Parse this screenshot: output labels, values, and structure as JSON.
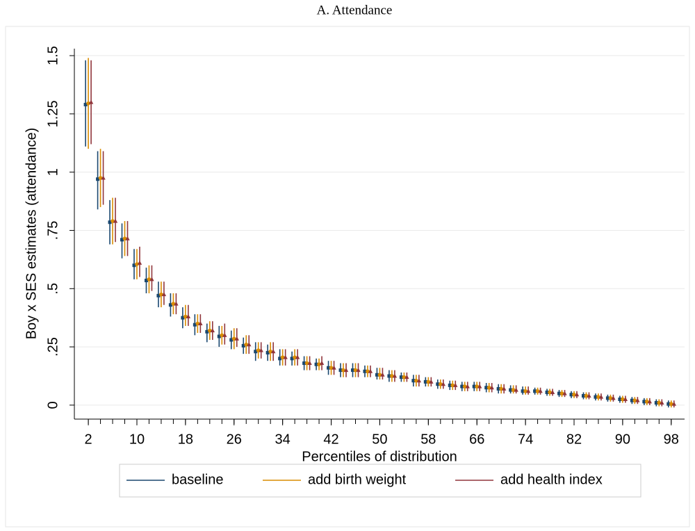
{
  "chart_data": {
    "type": "errorbar",
    "title": "A. Attendance",
    "x_label": "Percentiles of distribution",
    "y_label": "Boy x SES estimates (attendance)",
    "x": [
      2,
      4,
      6,
      8,
      10,
      12,
      14,
      16,
      18,
      20,
      22,
      24,
      26,
      28,
      30,
      32,
      34,
      36,
      38,
      40,
      42,
      44,
      46,
      48,
      50,
      52,
      54,
      56,
      58,
      60,
      62,
      64,
      66,
      68,
      70,
      72,
      74,
      76,
      78,
      80,
      82,
      84,
      86,
      88,
      90,
      92,
      94,
      96,
      98
    ],
    "xlim": [
      -0.3,
      100.2
    ],
    "xticks": [
      2,
      10,
      18,
      26,
      34,
      42,
      50,
      58,
      66,
      74,
      82,
      90,
      98
    ],
    "ylim": [
      -0.06,
      1.53
    ],
    "yticks": [
      0,
      {
        "value": 0.25,
        "label": ".25"
      },
      {
        "value": 0.5,
        "label": ".5"
      },
      {
        "value": 0.75,
        "label": ".75"
      },
      1,
      {
        "value": 1.25,
        "label": "1.25"
      },
      {
        "value": 1.5,
        "label": "1.5"
      }
    ],
    "grid": true,
    "legend": "bottom",
    "series": [
      {
        "name": "baseline",
        "color": "#1a476f",
        "marker": "square",
        "values": [
          1.29,
          0.97,
          0.785,
          0.71,
          0.6,
          0.535,
          0.47,
          0.43,
          0.375,
          0.345,
          0.315,
          0.295,
          0.28,
          0.255,
          0.23,
          0.225,
          0.2,
          0.2,
          0.18,
          0.175,
          0.16,
          0.15,
          0.15,
          0.145,
          0.13,
          0.125,
          0.12,
          0.105,
          0.1,
          0.09,
          0.085,
          0.08,
          0.08,
          0.075,
          0.07,
          0.065,
          0.06,
          0.06,
          0.055,
          0.05,
          0.045,
          0.04,
          0.035,
          0.03,
          0.025,
          0.02,
          0.015,
          0.01,
          0.005
        ],
        "lower": [
          1.11,
          0.84,
          0.69,
          0.63,
          0.54,
          0.48,
          0.42,
          0.38,
          0.33,
          0.3,
          0.27,
          0.25,
          0.24,
          0.22,
          0.19,
          0.19,
          0.17,
          0.17,
          0.15,
          0.15,
          0.13,
          0.12,
          0.12,
          0.12,
          0.11,
          0.1,
          0.1,
          0.08,
          0.08,
          0.07,
          0.065,
          0.06,
          0.06,
          0.055,
          0.05,
          0.05,
          0.045,
          0.045,
          0.04,
          0.035,
          0.03,
          0.025,
          0.02,
          0.015,
          0.01,
          0.005,
          0,
          -0.005,
          -0.01
        ],
        "upper": [
          1.48,
          1.09,
          0.88,
          0.78,
          0.67,
          0.59,
          0.53,
          0.48,
          0.42,
          0.39,
          0.35,
          0.34,
          0.32,
          0.29,
          0.27,
          0.26,
          0.24,
          0.23,
          0.21,
          0.2,
          0.19,
          0.18,
          0.18,
          0.17,
          0.16,
          0.15,
          0.14,
          0.13,
          0.12,
          0.11,
          0.105,
          0.1,
          0.1,
          0.095,
          0.09,
          0.085,
          0.08,
          0.075,
          0.07,
          0.065,
          0.06,
          0.055,
          0.05,
          0.045,
          0.04,
          0.035,
          0.03,
          0.025,
          0.02
        ]
      },
      {
        "name": "add birth weight",
        "color": "#d98c00",
        "marker": "circle",
        "values": [
          1.295,
          0.975,
          0.79,
          0.715,
          0.605,
          0.54,
          0.475,
          0.435,
          0.38,
          0.35,
          0.32,
          0.3,
          0.285,
          0.26,
          0.235,
          0.23,
          0.205,
          0.205,
          0.18,
          0.175,
          0.16,
          0.15,
          0.15,
          0.145,
          0.13,
          0.125,
          0.12,
          0.105,
          0.1,
          0.09,
          0.085,
          0.08,
          0.08,
          0.075,
          0.07,
          0.065,
          0.06,
          0.06,
          0.055,
          0.05,
          0.045,
          0.04,
          0.035,
          0.03,
          0.025,
          0.02,
          0.015,
          0.01,
          0.005
        ],
        "lower": [
          1.1,
          0.85,
          0.69,
          0.64,
          0.54,
          0.48,
          0.42,
          0.39,
          0.34,
          0.31,
          0.28,
          0.26,
          0.24,
          0.22,
          0.2,
          0.19,
          0.17,
          0.17,
          0.15,
          0.15,
          0.13,
          0.12,
          0.12,
          0.12,
          0.11,
          0.1,
          0.1,
          0.08,
          0.08,
          0.07,
          0.065,
          0.06,
          0.06,
          0.055,
          0.05,
          0.05,
          0.045,
          0.045,
          0.04,
          0.035,
          0.03,
          0.025,
          0.02,
          0.015,
          0.01,
          0.005,
          0,
          -0.005,
          -0.01
        ],
        "upper": [
          1.49,
          1.1,
          0.89,
          0.79,
          0.67,
          0.6,
          0.53,
          0.48,
          0.43,
          0.39,
          0.36,
          0.34,
          0.33,
          0.3,
          0.27,
          0.27,
          0.24,
          0.24,
          0.21,
          0.2,
          0.19,
          0.18,
          0.18,
          0.17,
          0.16,
          0.15,
          0.14,
          0.13,
          0.12,
          0.11,
          0.105,
          0.1,
          0.1,
          0.095,
          0.09,
          0.085,
          0.08,
          0.075,
          0.07,
          0.065,
          0.06,
          0.055,
          0.05,
          0.045,
          0.04,
          0.035,
          0.03,
          0.025,
          0.02
        ]
      },
      {
        "name": "add health index",
        "color": "#90353b",
        "marker": "triangle",
        "values": [
          1.3,
          0.975,
          0.79,
          0.715,
          0.61,
          0.54,
          0.475,
          0.435,
          0.38,
          0.35,
          0.32,
          0.3,
          0.285,
          0.26,
          0.235,
          0.23,
          0.205,
          0.205,
          0.18,
          0.18,
          0.16,
          0.15,
          0.15,
          0.145,
          0.13,
          0.125,
          0.12,
          0.105,
          0.1,
          0.09,
          0.085,
          0.08,
          0.08,
          0.075,
          0.07,
          0.065,
          0.06,
          0.06,
          0.055,
          0.05,
          0.045,
          0.04,
          0.035,
          0.03,
          0.025,
          0.02,
          0.015,
          0.01,
          0.005
        ],
        "lower": [
          1.12,
          0.86,
          0.7,
          0.64,
          0.55,
          0.49,
          0.43,
          0.39,
          0.34,
          0.31,
          0.28,
          0.26,
          0.25,
          0.22,
          0.2,
          0.19,
          0.17,
          0.17,
          0.15,
          0.15,
          0.13,
          0.12,
          0.12,
          0.12,
          0.11,
          0.1,
          0.1,
          0.08,
          0.08,
          0.07,
          0.065,
          0.06,
          0.06,
          0.055,
          0.05,
          0.05,
          0.045,
          0.045,
          0.04,
          0.035,
          0.03,
          0.025,
          0.02,
          0.015,
          0.01,
          0.005,
          0,
          -0.005,
          -0.01
        ],
        "upper": [
          1.48,
          1.09,
          0.89,
          0.79,
          0.68,
          0.6,
          0.53,
          0.48,
          0.43,
          0.39,
          0.36,
          0.35,
          0.33,
          0.3,
          0.27,
          0.27,
          0.24,
          0.24,
          0.21,
          0.21,
          0.19,
          0.18,
          0.18,
          0.17,
          0.16,
          0.15,
          0.14,
          0.13,
          0.12,
          0.11,
          0.105,
          0.1,
          0.1,
          0.095,
          0.09,
          0.085,
          0.08,
          0.075,
          0.07,
          0.065,
          0.06,
          0.055,
          0.05,
          0.045,
          0.04,
          0.035,
          0.03,
          0.025,
          0.02
        ]
      }
    ]
  }
}
